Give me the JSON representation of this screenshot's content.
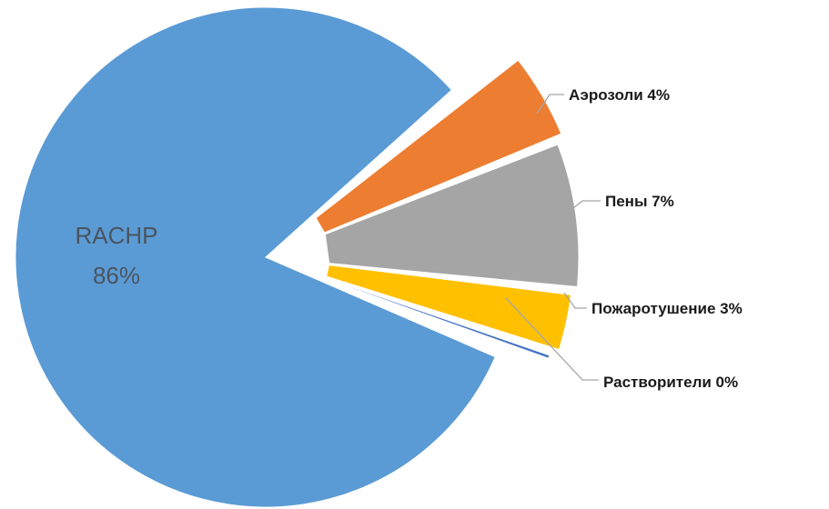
{
  "chart_data": {
    "type": "pie",
    "title": "",
    "slices": [
      {
        "label": "RACHP",
        "percent_label": "86%",
        "value": 86,
        "color": "#5b9bd5",
        "label_position": "inside"
      },
      {
        "label": "Аэрозоли",
        "percent_label": "4%",
        "value": 4,
        "color": "#ed7d31",
        "label_position": "outside"
      },
      {
        "label": "Пены",
        "percent_label": "7%",
        "value": 7,
        "color": "#a5a5a5",
        "label_position": "outside"
      },
      {
        "label": "Пожаротушение",
        "percent_label": "3%",
        "value": 3,
        "color": "#ffc000",
        "label_position": "outside"
      },
      {
        "label": "Растворители",
        "percent_label": "0%",
        "value": 0.3,
        "color": "#4472c4",
        "label_position": "outside"
      }
    ],
    "legend": "none",
    "exploded_slices": [
      "Аэрозоли",
      "Пены",
      "Пожаротушение",
      "Растворители"
    ]
  }
}
